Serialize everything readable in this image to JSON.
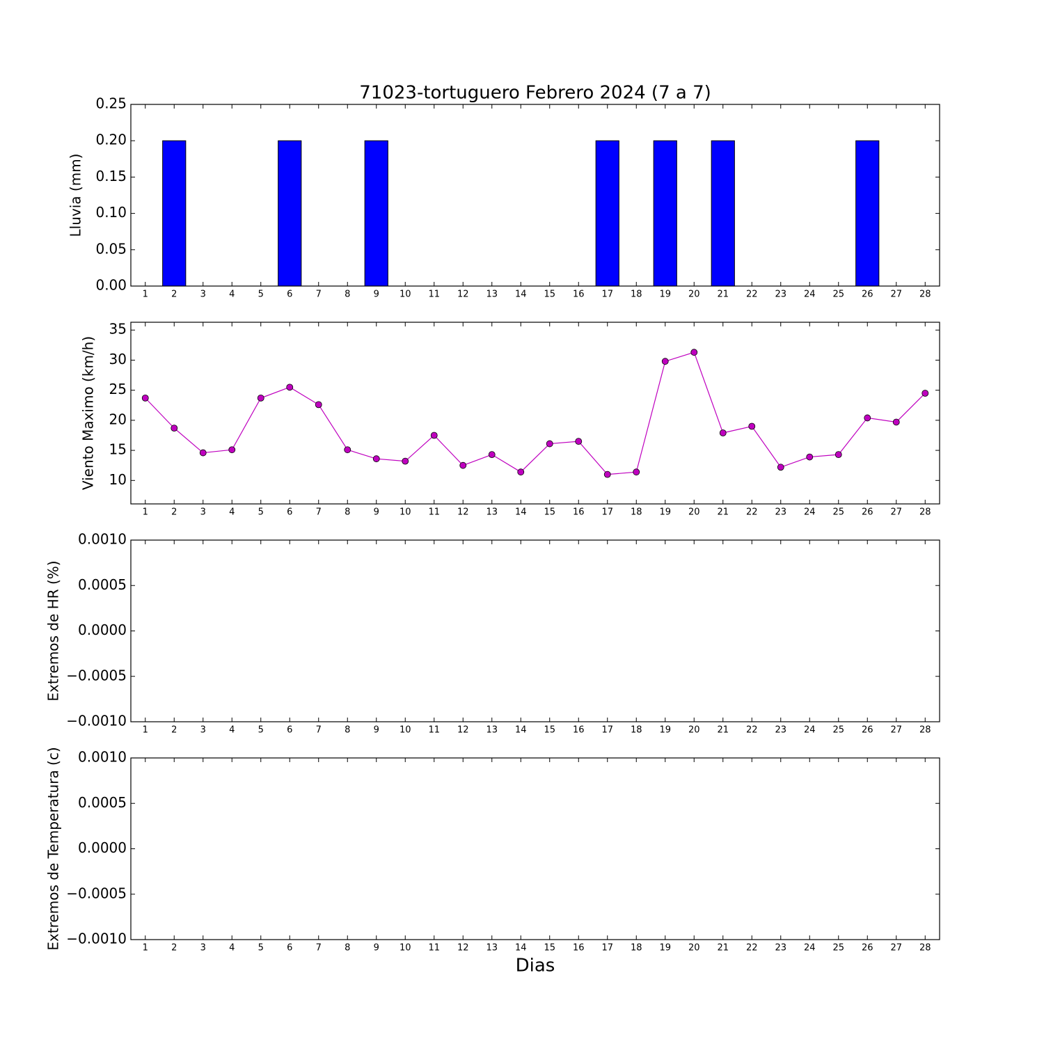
{
  "chart_data": [
    {
      "type": "bar",
      "title": "71023-tortuguero Febrero 2024  (7 a 7)",
      "y_label": "Lluvia (mm)",
      "categories": [
        "1",
        "2",
        "3",
        "4",
        "5",
        "6",
        "7",
        "8",
        "9",
        "10",
        "11",
        "12",
        "13",
        "14",
        "15",
        "16",
        "17",
        "18",
        "19",
        "20",
        "21",
        "22",
        "23",
        "24",
        "25",
        "26",
        "27",
        "28"
      ],
      "values": [
        0,
        0.2,
        0,
        0,
        0,
        0.2,
        0,
        0,
        0.2,
        0,
        0,
        0,
        0,
        0,
        0,
        0,
        0.2,
        0,
        0.2,
        0,
        0.2,
        0,
        0,
        0,
        0,
        0.2,
        0,
        0
      ],
      "color": "#0000ff",
      "ylim": [
        0,
        0.25
      ],
      "yticks": [
        {
          "value": 0,
          "label": "0.00"
        },
        {
          "value": 0.05,
          "label": "0.05"
        },
        {
          "value": 0.1,
          "label": "0.10"
        },
        {
          "value": 0.15,
          "label": "0.15"
        },
        {
          "value": 0.2,
          "label": "0.20"
        },
        {
          "value": 0.25,
          "label": "0.25"
        }
      ]
    },
    {
      "type": "line",
      "y_label": "Viento Maximo (km/h)",
      "categories": [
        "1",
        "2",
        "3",
        "4",
        "5",
        "6",
        "7",
        "8",
        "9",
        "10",
        "11",
        "12",
        "13",
        "14",
        "15",
        "16",
        "17",
        "18",
        "19",
        "20",
        "21",
        "22",
        "23",
        "24",
        "25",
        "26",
        "27",
        "28"
      ],
      "values": [
        23.7,
        18.7,
        14.6,
        15.1,
        23.7,
        25.5,
        22.6,
        15.1,
        13.6,
        13.2,
        17.5,
        12.5,
        14.3,
        11.4,
        16.1,
        16.5,
        11.0,
        11.4,
        29.8,
        31.3,
        17.9,
        19.0,
        12.2,
        13.9,
        14.3,
        20.4,
        19.7,
        24.5
      ],
      "color": "#bf00bf",
      "ylim": [
        6.1,
        36.3
      ],
      "yticks": [
        10,
        15,
        20,
        25,
        30,
        35
      ]
    },
    {
      "type": "line",
      "y_label": "Extremos de HR (%)",
      "categories": [
        "1",
        "2",
        "3",
        "4",
        "5",
        "6",
        "7",
        "8",
        "9",
        "10",
        "11",
        "12",
        "13",
        "14",
        "15",
        "16",
        "17",
        "18",
        "19",
        "20",
        "21",
        "22",
        "23",
        "24",
        "25",
        "26",
        "27",
        "28"
      ],
      "ylim": [
        -0.001,
        0.001
      ],
      "yticks": [
        {
          "value": -0.001,
          "label": "−0.0010"
        },
        {
          "value": -0.0005,
          "label": "−0.0005"
        },
        {
          "value": 0,
          "label": "0.0000"
        },
        {
          "value": 0.0005,
          "label": "0.0005"
        },
        {
          "value": 0.001,
          "label": "0.0010"
        }
      ]
    },
    {
      "type": "line",
      "y_label": "Extremos de Temperatura (c)",
      "x_label": "Dias",
      "categories": [
        "1",
        "2",
        "3",
        "4",
        "5",
        "6",
        "7",
        "8",
        "9",
        "10",
        "11",
        "12",
        "13",
        "14",
        "15",
        "16",
        "17",
        "18",
        "19",
        "20",
        "21",
        "22",
        "23",
        "24",
        "25",
        "26",
        "27",
        "28"
      ],
      "ylim": [
        -0.001,
        0.001
      ],
      "yticks": [
        {
          "value": -0.001,
          "label": "−0.0010"
        },
        {
          "value": -0.0005,
          "label": "−0.0005"
        },
        {
          "value": 0,
          "label": "0.0000"
        },
        {
          "value": 0.0005,
          "label": "0.0005"
        },
        {
          "value": 0.001,
          "label": "0.0010"
        }
      ]
    }
  ]
}
